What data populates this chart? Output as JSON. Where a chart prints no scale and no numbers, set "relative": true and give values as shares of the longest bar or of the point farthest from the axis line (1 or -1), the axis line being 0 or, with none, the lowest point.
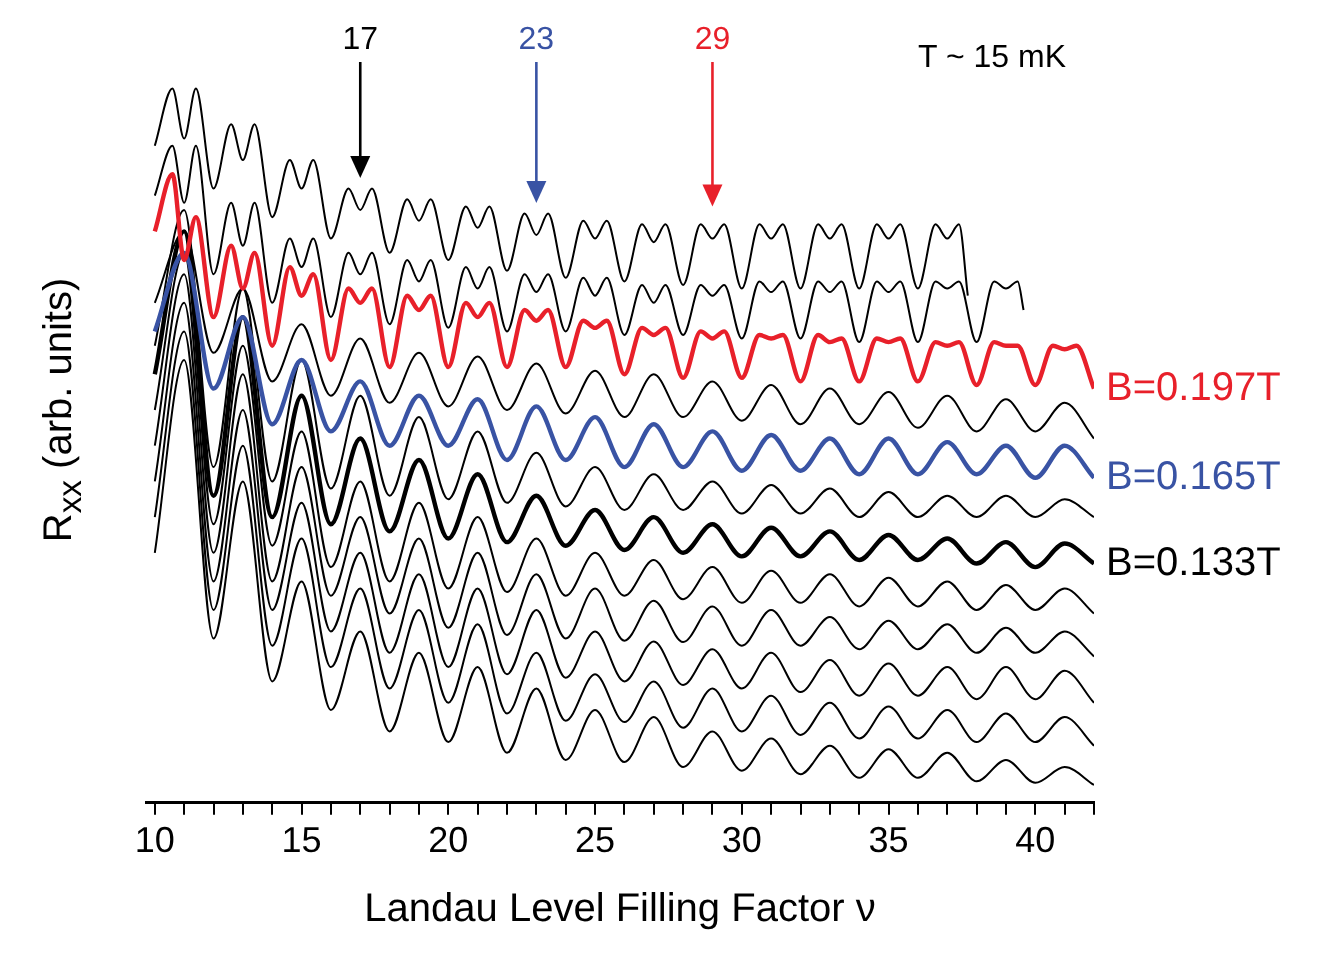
{
  "chart_data": {
    "type": "line",
    "relative": true,
    "xlabel": "Landau Level Filling Factor ν",
    "ylabel": "R$_{xx}$ (arb. units)",
    "xlim": [
      9.7,
      42
    ],
    "xticks": [
      10,
      {
        "value": 11,
        "label": null
      },
      {
        "value": 12,
        "label": null
      },
      {
        "value": 13,
        "label": null
      },
      {
        "value": 14,
        "label": null
      },
      15,
      {
        "value": 16,
        "label": null
      },
      {
        "value": 17,
        "label": null
      },
      {
        "value": 18,
        "label": null
      },
      {
        "value": 19,
        "label": null
      },
      20,
      {
        "value": 21,
        "label": null
      },
      {
        "value": 22,
        "label": null
      },
      {
        "value": 23,
        "label": null
      },
      {
        "value": 24,
        "label": null
      },
      25,
      {
        "value": 26,
        "label": null
      },
      {
        "value": 27,
        "label": null
      },
      {
        "value": 28,
        "label": null
      },
      {
        "value": 29,
        "label": null
      },
      30,
      {
        "value": 31,
        "label": null
      },
      {
        "value": 32,
        "label": null
      },
      {
        "value": 33,
        "label": null
      },
      {
        "value": 34,
        "label": null
      },
      35,
      {
        "value": 36,
        "label": null
      },
      {
        "value": 37,
        "label": null
      },
      {
        "value": 38,
        "label": null
      },
      {
        "value": 39,
        "label": null
      },
      40,
      {
        "value": 41,
        "label": null
      },
      {
        "value": 42,
        "label": null
      }
    ],
    "x": [
      10,
      11,
      12,
      13,
      14,
      15,
      16,
      17,
      18,
      19,
      20,
      21,
      22,
      23,
      24,
      25,
      26,
      27,
      28,
      29,
      30,
      31,
      32,
      33,
      34,
      35,
      36,
      37,
      38,
      39,
      40,
      41,
      42
    ],
    "annotations": [
      "17",
      "23",
      "29",
      "T ~ 15 mK"
    ],
    "series": [
      {
        "color": "#000000",
        "x": [
          10,
          10.6,
          11,
          11.4,
          12,
          12.6,
          13,
          13.4,
          14,
          14.6,
          15,
          15.4,
          16,
          16.6,
          17,
          17.4,
          18,
          18.6,
          19,
          19.4,
          20,
          20.6,
          21,
          21.4,
          22,
          22.6,
          23,
          23.4,
          24,
          24.6,
          25,
          25.4,
          26,
          26.6,
          27,
          27.4,
          28,
          28.6,
          29,
          29.4,
          30,
          30.6,
          31,
          31.4,
          32,
          32.6,
          33,
          33.4,
          34,
          34.6,
          35,
          35.4,
          36,
          36.6,
          37,
          37.4,
          37.7
        ],
        "values": [
          0.92,
          1.0,
          0.93,
          1.0,
          0.86,
          0.95,
          0.9,
          0.95,
          0.82,
          0.9,
          0.86,
          0.9,
          0.79,
          0.86,
          0.83,
          0.86,
          0.77,
          0.845,
          0.815,
          0.845,
          0.76,
          0.835,
          0.805,
          0.835,
          0.745,
          0.825,
          0.795,
          0.825,
          0.735,
          0.815,
          0.79,
          0.815,
          0.73,
          0.81,
          0.785,
          0.81,
          0.725,
          0.81,
          0.79,
          0.81,
          0.72,
          0.81,
          0.79,
          0.81,
          0.72,
          0.81,
          0.79,
          0.81,
          0.72,
          0.81,
          0.79,
          0.81,
          0.72,
          0.81,
          0.79,
          0.81,
          0.71
        ]
      },
      {
        "color": "#000000",
        "x": [
          10,
          10.6,
          11,
          11.4,
          12,
          12.6,
          13,
          13.4,
          14,
          14.6,
          15,
          15.4,
          16,
          16.6,
          17,
          17.4,
          18,
          18.6,
          19,
          19.4,
          20,
          20.6,
          21,
          21.4,
          22,
          22.6,
          23,
          23.4,
          24,
          24.6,
          25,
          25.4,
          26,
          26.6,
          27,
          27.4,
          28,
          28.6,
          29,
          29.4,
          30,
          30.6,
          31,
          31.4,
          32,
          32.6,
          33,
          33.4,
          34,
          34.6,
          35,
          35.4,
          36,
          36.6,
          37,
          37.4,
          38,
          38.6,
          39,
          39.4,
          39.6
        ],
        "values": [
          0.85,
          0.92,
          0.84,
          0.92,
          0.74,
          0.84,
          0.78,
          0.84,
          0.7,
          0.79,
          0.75,
          0.79,
          0.68,
          0.77,
          0.74,
          0.77,
          0.67,
          0.76,
          0.73,
          0.76,
          0.665,
          0.75,
          0.72,
          0.75,
          0.66,
          0.74,
          0.715,
          0.74,
          0.66,
          0.735,
          0.71,
          0.735,
          0.655,
          0.725,
          0.7,
          0.725,
          0.655,
          0.725,
          0.71,
          0.725,
          0.65,
          0.73,
          0.715,
          0.73,
          0.65,
          0.73,
          0.715,
          0.73,
          0.645,
          0.73,
          0.715,
          0.73,
          0.645,
          0.73,
          0.72,
          0.73,
          0.645,
          0.73,
          0.72,
          0.73,
          0.69
        ]
      },
      {
        "name": "B=0.197T",
        "color": "#e8202a",
        "x": [
          10,
          10.6,
          11,
          11.4,
          12,
          12.6,
          13,
          13.4,
          14,
          14.6,
          15,
          15.4,
          16,
          16.6,
          17,
          17.4,
          18,
          18.6,
          19,
          19.4,
          20,
          20.6,
          21,
          21.4,
          22,
          22.6,
          23,
          23.4,
          24,
          24.6,
          25,
          25.4,
          26,
          26.6,
          27,
          27.4,
          28,
          28.6,
          29,
          29.4,
          30,
          30.6,
          31,
          31.4,
          32,
          32.6,
          33,
          33.4,
          34,
          34.6,
          35,
          35.4,
          36,
          36.6,
          37,
          37.4,
          38,
          38.6,
          39,
          39.4,
          40,
          40.6,
          41,
          41.4,
          42
        ],
        "values": [
          0.8,
          0.88,
          0.76,
          0.82,
          0.68,
          0.78,
          0.72,
          0.77,
          0.64,
          0.75,
          0.71,
          0.74,
          0.62,
          0.72,
          0.7,
          0.72,
          0.61,
          0.71,
          0.69,
          0.71,
          0.61,
          0.7,
          0.68,
          0.7,
          0.61,
          0.69,
          0.675,
          0.69,
          0.61,
          0.675,
          0.665,
          0.675,
          0.6,
          0.665,
          0.655,
          0.665,
          0.595,
          0.66,
          0.65,
          0.66,
          0.595,
          0.655,
          0.65,
          0.655,
          0.59,
          0.655,
          0.645,
          0.65,
          0.59,
          0.65,
          0.645,
          0.65,
          0.59,
          0.645,
          0.64,
          0.645,
          0.585,
          0.645,
          0.64,
          0.64,
          0.585,
          0.64,
          0.635,
          0.64,
          0.58
        ]
      },
      {
        "color": "#000000",
        "values": [
          0.7,
          0.8,
          0.63,
          0.72,
          0.59,
          0.67,
          0.57,
          0.65,
          0.56,
          0.63,
          0.555,
          0.625,
          0.55,
          0.615,
          0.545,
          0.605,
          0.54,
          0.6,
          0.54,
          0.59,
          0.535,
          0.585,
          0.53,
          0.58,
          0.53,
          0.575,
          0.525,
          0.57,
          0.52,
          0.565,
          0.52,
          0.56,
          0.51
        ]
      },
      {
        "name": "B=0.165T",
        "color": "#3953a4",
        "values": [
          0.66,
          0.77,
          0.58,
          0.68,
          0.53,
          0.62,
          0.52,
          0.59,
          0.5,
          0.57,
          0.5,
          0.565,
          0.48,
          0.555,
          0.48,
          0.54,
          0.47,
          0.53,
          0.47,
          0.52,
          0.465,
          0.515,
          0.465,
          0.51,
          0.46,
          0.51,
          0.46,
          0.505,
          0.46,
          0.5,
          0.455,
          0.5,
          0.455
        ]
      },
      {
        "color": "#000000",
        "values": [
          0.64,
          0.83,
          0.47,
          0.72,
          0.45,
          0.62,
          0.44,
          0.57,
          0.43,
          0.54,
          0.425,
          0.52,
          0.42,
          0.49,
          0.415,
          0.47,
          0.41,
          0.46,
          0.41,
          0.45,
          0.405,
          0.445,
          0.405,
          0.44,
          0.4,
          0.435,
          0.4,
          0.43,
          0.4,
          0.43,
          0.4,
          0.425,
          0.4
        ]
      },
      {
        "name": "B=0.133T",
        "color": "#000000",
        "values": [
          0.6,
          0.8,
          0.43,
          0.68,
          0.4,
          0.57,
          0.39,
          0.51,
          0.38,
          0.48,
          0.37,
          0.46,
          0.365,
          0.43,
          0.36,
          0.41,
          0.354,
          0.4,
          0.35,
          0.39,
          0.345,
          0.385,
          0.345,
          0.38,
          0.34,
          0.375,
          0.34,
          0.37,
          0.335,
          0.365,
          0.33,
          0.363,
          0.335
        ]
      },
      {
        "color": "#000000",
        "values": [
          0.55,
          0.77,
          0.39,
          0.64,
          0.36,
          0.52,
          0.33,
          0.45,
          0.31,
          0.42,
          0.3,
          0.4,
          0.295,
          0.37,
          0.29,
          0.35,
          0.29,
          0.34,
          0.285,
          0.33,
          0.28,
          0.325,
          0.28,
          0.32,
          0.275,
          0.315,
          0.275,
          0.31,
          0.27,
          0.305,
          0.27,
          0.3,
          0.265
        ]
      },
      {
        "color": "#000000",
        "values": [
          0.5,
          0.74,
          0.35,
          0.6,
          0.31,
          0.47,
          0.29,
          0.4,
          0.265,
          0.37,
          0.245,
          0.35,
          0.235,
          0.32,
          0.23,
          0.3,
          0.227,
          0.283,
          0.225,
          0.275,
          0.22,
          0.27,
          0.22,
          0.26,
          0.215,
          0.255,
          0.215,
          0.25,
          0.21,
          0.245,
          0.21,
          0.24,
          0.205
        ]
      },
      {
        "color": "#000000",
        "values": [
          0.45,
          0.7,
          0.31,
          0.55,
          0.27,
          0.42,
          0.24,
          0.35,
          0.21,
          0.32,
          0.19,
          0.3,
          0.18,
          0.27,
          0.175,
          0.24,
          0.17,
          0.226,
          0.165,
          0.215,
          0.16,
          0.21,
          0.155,
          0.2,
          0.15,
          0.195,
          0.15,
          0.19,
          0.145,
          0.19,
          0.145,
          0.185,
          0.14
        ]
      },
      {
        "color": "#000000",
        "values": [
          0.4,
          0.66,
          0.27,
          0.5,
          0.22,
          0.37,
          0.19,
          0.3,
          0.16,
          0.27,
          0.14,
          0.25,
          0.125,
          0.21,
          0.115,
          0.18,
          0.113,
          0.17,
          0.105,
          0.16,
          0.1,
          0.15,
          0.095,
          0.14,
          0.09,
          0.135,
          0.09,
          0.13,
          0.085,
          0.125,
          0.085,
          0.12,
          0.08
        ]
      },
      {
        "color": "#000000",
        "values": [
          0.35,
          0.62,
          0.23,
          0.45,
          0.17,
          0.31,
          0.13,
          0.24,
          0.1,
          0.21,
          0.085,
          0.19,
          0.07,
          0.16,
          0.06,
          0.13,
          0.057,
          0.12,
          0.05,
          0.1,
          0.045,
          0.09,
          0.04,
          0.08,
          0.035,
          0.075,
          0.035,
          0.07,
          0.03,
          0.06,
          0.028,
          0.05,
          0.025
        ]
      }
    ]
  }
}
